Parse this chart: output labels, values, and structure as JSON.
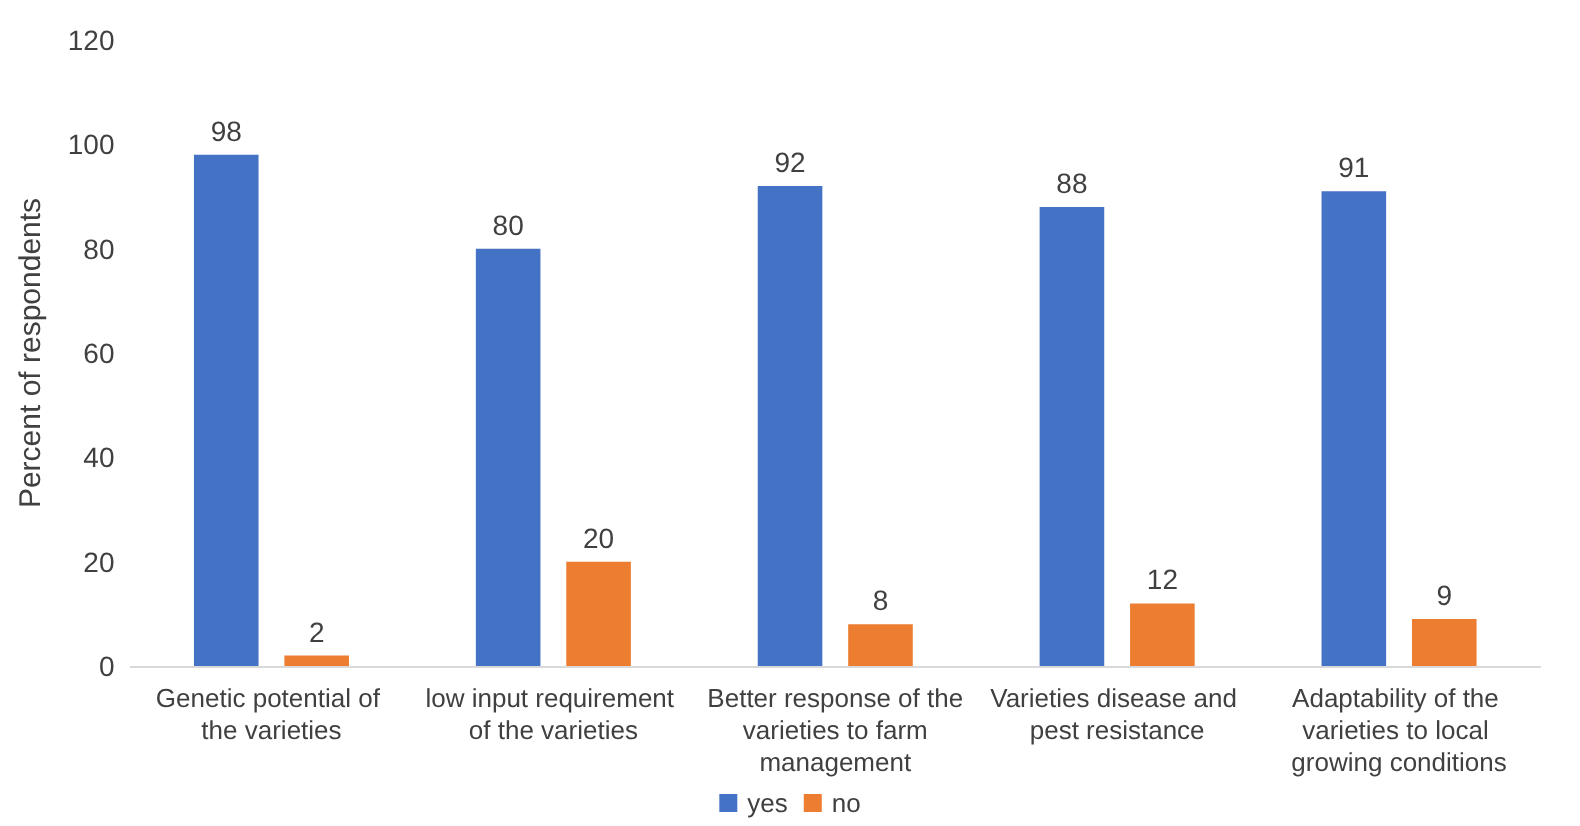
{
  "chart_data": {
    "type": "bar",
    "ylabel": "Percent of respondents",
    "categories": [
      "Genetic potential of the varieties",
      "low input requirement of the varieties",
      "Better response of the varieties to farm management",
      "Varieties disease and pest resistance",
      "Adaptability of the varieties to local growing conditions"
    ],
    "series": [
      {
        "name": "yes",
        "color": "#4472c4",
        "values": [
          98,
          80,
          92,
          88,
          91
        ]
      },
      {
        "name": "no",
        "color": "#ed7d31",
        "values": [
          2,
          20,
          8,
          12,
          9
        ]
      }
    ],
    "ylim": [
      0,
      120
    ],
    "yticks": [
      0,
      20,
      40,
      60,
      80,
      100,
      120
    ],
    "grid": false,
    "legend": "bottom",
    "data_labels": true
  }
}
